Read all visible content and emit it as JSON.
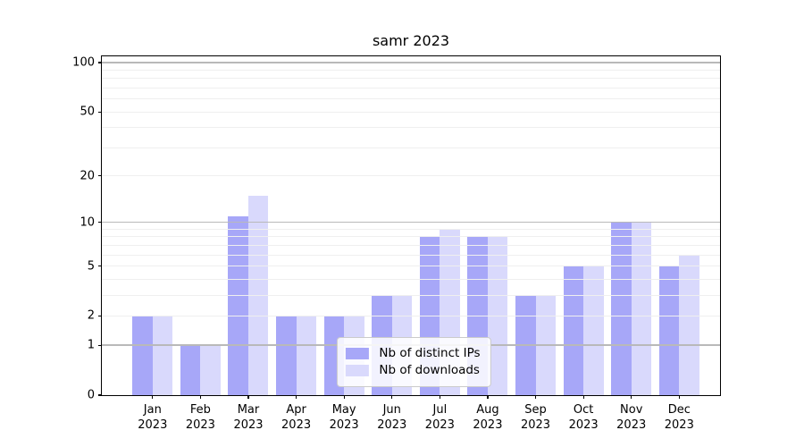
{
  "chart_data": {
    "type": "bar",
    "title": "samr 2023",
    "categories": [
      "Jan 2023",
      "Feb 2023",
      "Mar 2023",
      "Apr 2023",
      "May 2023",
      "Jun 2023",
      "Jul 2023",
      "Aug 2023",
      "Sep 2023",
      "Oct 2023",
      "Nov 2023",
      "Dec 2023"
    ],
    "series": [
      {
        "name": "Nb of distinct IPs",
        "color": "#a7a7f8",
        "values": [
          2,
          1,
          11,
          2,
          2,
          3,
          8,
          8,
          3,
          5,
          10,
          5
        ]
      },
      {
        "name": "Nb of downloads",
        "color": "#d9d9fc",
        "values": [
          2,
          1,
          15,
          2,
          2,
          3,
          9,
          8,
          3,
          5,
          10,
          6
        ]
      }
    ],
    "yscale": "log1p",
    "yticks": [
      0,
      1,
      2,
      5,
      10,
      20,
      50,
      100
    ],
    "minor_yticks": [
      3,
      4,
      6,
      7,
      8,
      9,
      30,
      40,
      60,
      70,
      80,
      90
    ],
    "major_grid_decades": [
      1,
      10,
      100
    ],
    "ylim": [
      0,
      112
    ],
    "xlim": [
      -1.06,
      11.89
    ],
    "bar_width_units": 0.42,
    "grid": true,
    "legend_position": "lower center",
    "colors": {
      "major_grid": "#b9b9b9",
      "minor_grid": "#efefef",
      "spine": "#000000"
    }
  }
}
